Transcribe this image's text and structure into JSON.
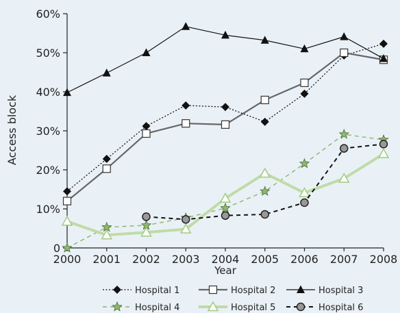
{
  "chart_data": {
    "type": "line",
    "xlabel": "Year",
    "ylabel": "Access block",
    "x": [
      2000,
      2001,
      2002,
      2003,
      2004,
      2005,
      2006,
      2007,
      2008
    ],
    "ylim": [
      0,
      60
    ],
    "yticks": [
      0,
      10,
      20,
      30,
      40,
      50,
      60
    ],
    "ytick_labels": [
      "0",
      "10%",
      "20%",
      "30%",
      "40%",
      "50%",
      "60%"
    ],
    "grid": false,
    "legend_position": "bottom",
    "series": [
      {
        "name": "Hospital 1",
        "values": [
          14.5,
          22.8,
          31.2,
          36.5,
          36.1,
          32.3,
          39.5,
          49.3,
          52.3
        ],
        "color": "#111111",
        "line": "dotted",
        "marker": "diamond",
        "marker_fill": "#111111",
        "width": 1.3
      },
      {
        "name": "Hospital 2",
        "values": [
          12.0,
          20.3,
          29.3,
          31.9,
          31.6,
          37.9,
          42.3,
          50.0,
          48.2
        ],
        "color": "#666666",
        "line": "solid",
        "marker": "square",
        "marker_fill": "#ffffff",
        "width": 2.2
      },
      {
        "name": "Hospital 3",
        "values": [
          39.8,
          44.8,
          50.0,
          56.7,
          54.5,
          53.2,
          51.0,
          54.1,
          48.5
        ],
        "color": "#111111",
        "line": "solid",
        "marker": "triangle",
        "marker_fill": "#111111",
        "width": 1.2
      },
      {
        "name": "Hospital 4",
        "values": [
          0.0,
          5.3,
          5.8,
          7.7,
          10.2,
          14.5,
          21.6,
          29.1,
          27.7
        ],
        "color": "#88b66a",
        "line": "dashed",
        "marker": "star",
        "marker_fill": "#8dba6a",
        "width": 1.4
      },
      {
        "name": "Hospital 5",
        "values": [
          6.8,
          3.3,
          4.0,
          4.8,
          12.7,
          19.1,
          14.1,
          17.8,
          24.1
        ],
        "color": "#bfdca6",
        "line": "solid",
        "marker": "triangle-open",
        "marker_fill": "#ffffff",
        "width": 4.0
      },
      {
        "name": "Hospital 6",
        "values": [
          null,
          null,
          8.0,
          7.3,
          8.3,
          8.6,
          11.6,
          25.5,
          26.6
        ],
        "color": "#111111",
        "line": "dashed",
        "marker": "circle",
        "marker_fill": "#999999",
        "width": 2.0
      }
    ]
  }
}
